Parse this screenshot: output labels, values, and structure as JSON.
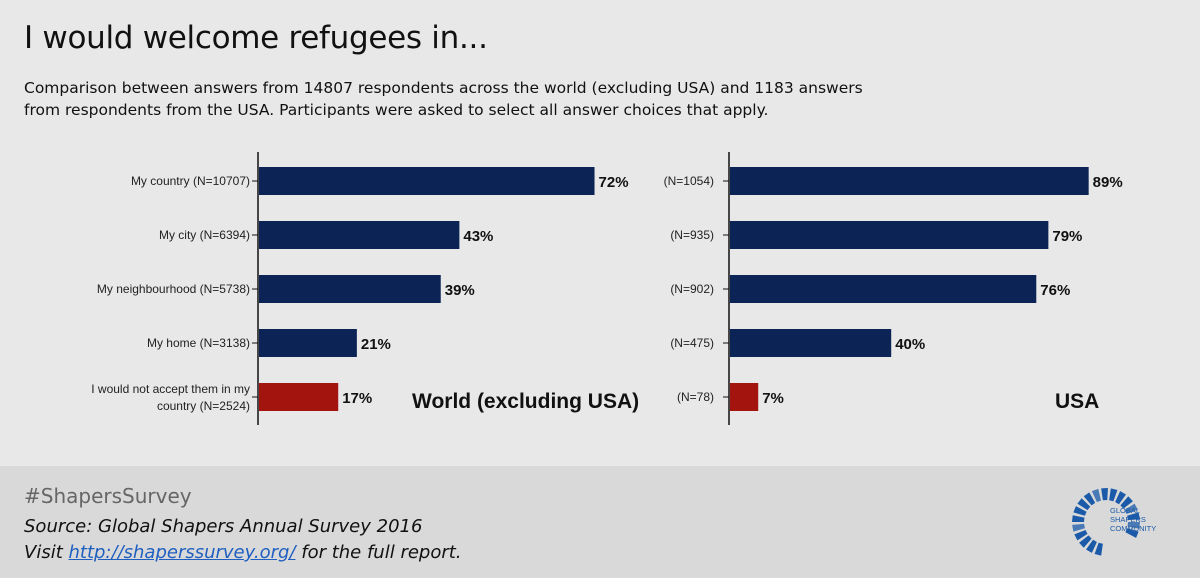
{
  "title": "I would welcome refugees in...",
  "subtitle": "Comparison between answers from 14807 respondents across the world (excluding USA) and 1183 answers from respondents from the USA. Participants were asked to select all answer choices that apply.",
  "colors": {
    "bar": "#0c2356",
    "bar_highlight": "#a3140f",
    "background": "#e8e8e8",
    "footer": "#d9d9d9"
  },
  "chart_data": [
    {
      "type": "bar",
      "orientation": "horizontal",
      "panel_label": "World (excluding USA)",
      "categories": [
        "My country (N=10707)",
        "My city (N=6394)",
        "My neighbourhood (N=5738)",
        "My home (N=3138)",
        "I would not accept them in my country (N=2524)"
      ],
      "values": [
        72,
        43,
        39,
        21,
        17
      ],
      "value_labels": [
        "72%",
        "43%",
        "39%",
        "21%",
        "17%"
      ],
      "highlight_index": 4,
      "xlim": [
        0,
        100
      ],
      "grid": false
    },
    {
      "type": "bar",
      "orientation": "horizontal",
      "panel_label": "USA",
      "categories": [
        "(N=1054)",
        "(N=935)",
        "(N=902)",
        "(N=475)",
        "(N=78)"
      ],
      "values": [
        89,
        79,
        76,
        40,
        7
      ],
      "value_labels": [
        "89%",
        "79%",
        "76%",
        "40%",
        "7%"
      ],
      "highlight_index": 4,
      "xlim": [
        0,
        100
      ],
      "grid": false
    }
  ],
  "footer": {
    "hashtag": "#ShapersSurvey",
    "source": "Source: Global Shapers Annual Survey 2016",
    "visit_prefix": "Visit ",
    "link": "http://shaperssurvey.org/",
    "visit_suffix": " for the full report.",
    "logo_text": [
      "GLOBAL",
      "SHAPERS",
      "COMMUNITY"
    ],
    "logo_color": "#1a5aa8"
  }
}
